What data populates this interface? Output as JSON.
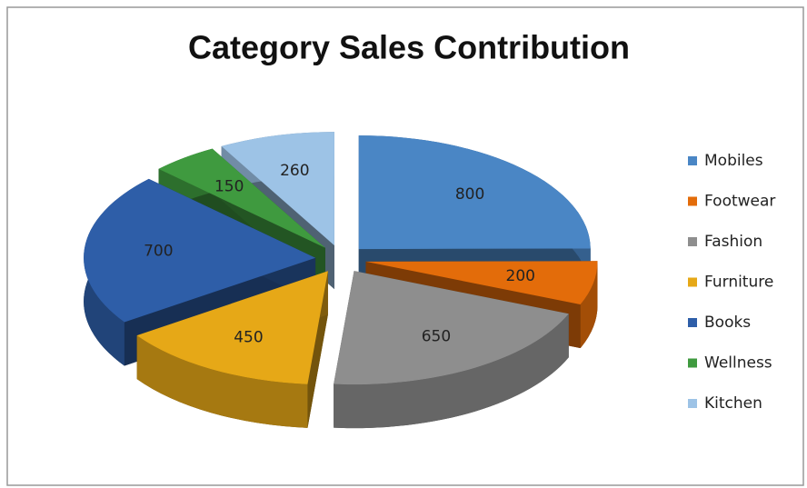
{
  "chart_data": {
    "type": "pie",
    "title": "Category Sales Contribution",
    "categories": [
      "Mobiles",
      "Footwear",
      "Fashion",
      "Furniture",
      "Books",
      "Wellness",
      "Kitchen"
    ],
    "values": [
      800,
      200,
      650,
      450,
      700,
      150,
      260
    ],
    "colors": [
      "#4a86c5",
      "#e36c0a",
      "#8e8e8e",
      "#e6a817",
      "#2e5ea8",
      "#3f9a3f",
      "#9dc3e6"
    ],
    "legend": "right"
  }
}
